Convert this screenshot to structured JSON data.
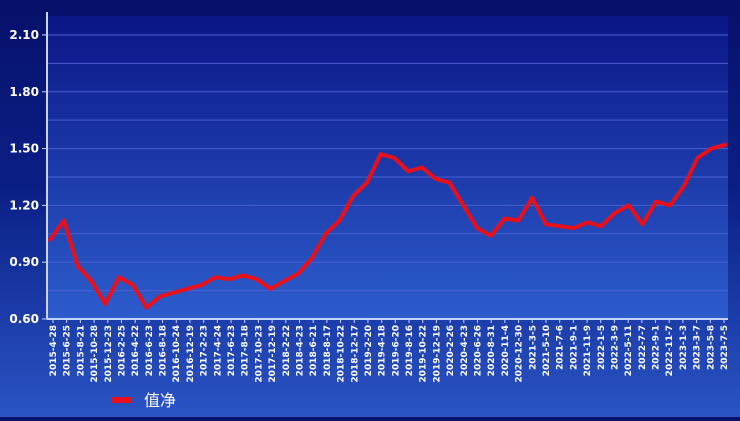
{
  "chart_data": {
    "type": "line",
    "title": "",
    "xlabel": "",
    "ylabel": "",
    "ylim": [
      0.6,
      2.2
    ],
    "yticks": [
      0.6,
      0.9,
      1.2,
      1.5,
      1.8,
      2.1
    ],
    "ytick_labels": [
      "0.60",
      "0.90",
      "1.20",
      "1.50",
      "1.80",
      "2.10"
    ],
    "grid": true,
    "legend_position": "bottom-left",
    "xtick_labels": [
      "2015-4-28",
      "2015-6-25",
      "2015-8-21",
      "2015-10-28",
      "2015-12-23",
      "2016-2-25",
      "2016-4-22",
      "2016-6-23",
      "2016-8-18",
      "2016-10-24",
      "2016-12-19",
      "2017-2-23",
      "2017-4-24",
      "2017-6-23",
      "2017-8-18",
      "2017-10-23",
      "2017-12-19",
      "2018-2-22",
      "2018-4-23",
      "2018-6-21",
      "2018-8-17",
      "2018-10-22",
      "2018-12-17",
      "2019-2-20",
      "2019-4-18",
      "2019-6-20",
      "2019-8-16",
      "2019-10-22",
      "2019-12-19",
      "2020-2-26",
      "2020-4-23",
      "2020-6-26",
      "2020-8-31",
      "2020-11-4",
      "2020-12-30",
      "2021-3-5",
      "2021-5-10",
      "2021-7-6",
      "2021-9-1",
      "2021-11-9",
      "2022-1-5",
      "2022-3-9",
      "2022-5-11",
      "2022-7-7",
      "2022-9-1",
      "2022-11-7",
      "2023-1-3",
      "2023-3-7",
      "2023-5-8",
      "2023-7-5"
    ],
    "colors": {
      "series": "#e8101a",
      "grid": "#4a5fd0",
      "axis": "#c8d4ff",
      "text": "#ffffff"
    },
    "series": [
      {
        "name": "值净",
        "x": [
          0,
          1,
          2,
          3,
          4,
          5,
          6,
          7,
          8,
          9,
          10,
          11,
          12,
          13,
          14,
          15,
          16,
          17,
          18,
          19,
          20,
          21,
          22,
          23,
          24,
          25,
          26,
          27,
          28,
          29,
          30,
          31,
          32,
          33,
          34,
          35,
          36,
          37,
          38,
          39,
          40,
          41,
          42,
          43,
          44,
          45,
          46,
          47,
          48,
          49
        ],
        "values": [
          1.02,
          1.12,
          0.88,
          0.8,
          0.68,
          0.82,
          0.78,
          0.66,
          0.72,
          0.74,
          0.76,
          0.78,
          0.82,
          0.81,
          0.83,
          0.81,
          0.76,
          0.8,
          0.84,
          0.92,
          1.05,
          1.12,
          1.25,
          1.32,
          1.47,
          1.45,
          1.38,
          1.4,
          1.34,
          1.32,
          1.2,
          1.08,
          1.04,
          1.13,
          1.12,
          1.24,
          1.1,
          1.09,
          1.08,
          1.11,
          1.09,
          1.16,
          1.2,
          1.1,
          1.22,
          1.2,
          1.3,
          1.45,
          1.5,
          1.52
        ]
      }
    ]
  },
  "legend": {
    "label": "值净"
  }
}
